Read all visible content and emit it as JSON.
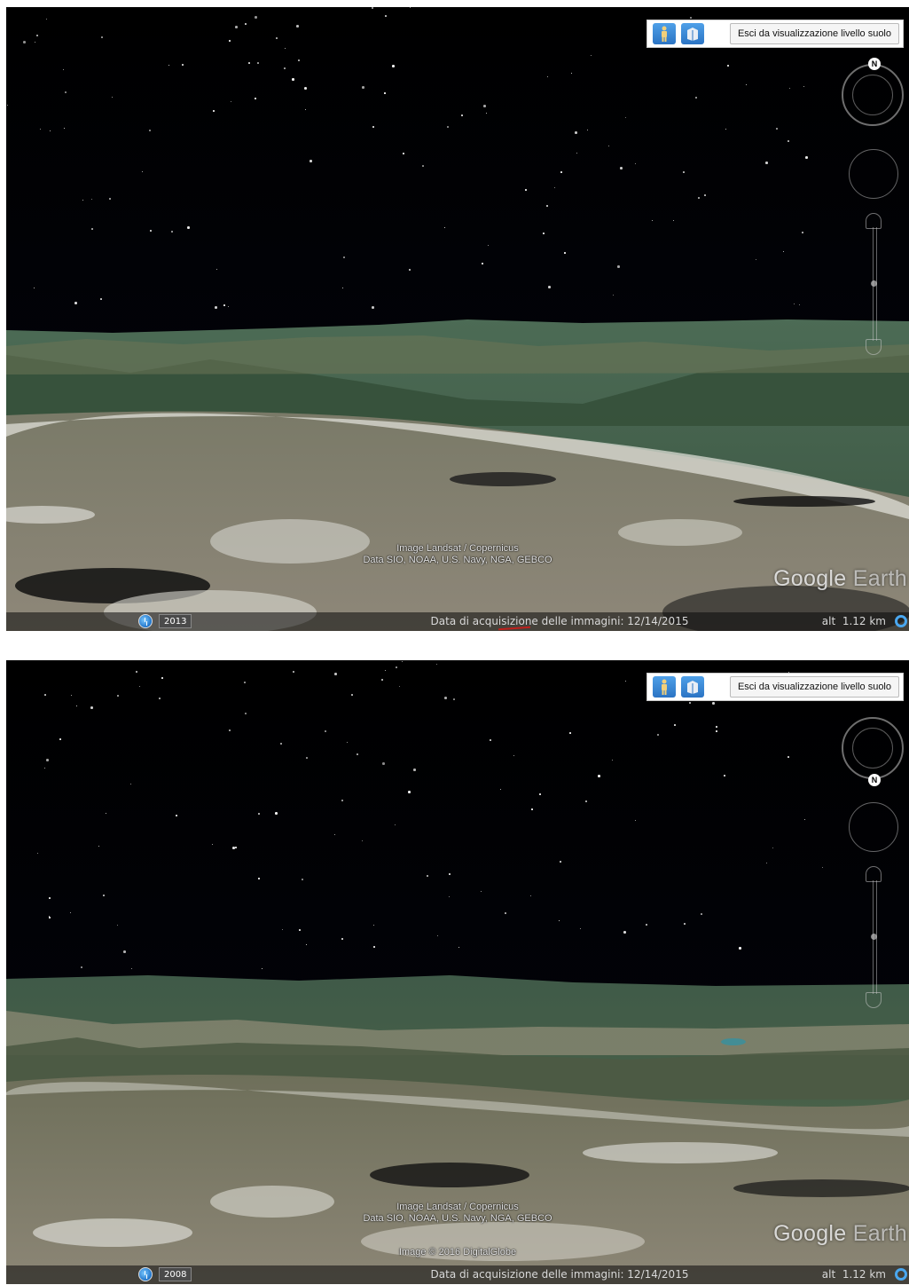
{
  "screens": [
    {
      "controls": {
        "exit_ground_view_label": "Esci da visualizzazione livello suolo",
        "person_icon": "street-view-person-icon",
        "building_icon": "3d-buildings-icon",
        "compass_north_label": "N"
      },
      "attribution": {
        "line1": "Image Landsat / Copernicus",
        "line2": "Data SIO, NOAA, U.S. Navy, NGA, GEBCO",
        "line3": ""
      },
      "logo": {
        "brand": "Google",
        "product": "Earth"
      },
      "status_bar": {
        "historical_year": "2013",
        "acquisition_date": "Data di acquisizione delle immagini: 12/14/2015",
        "altitude": "alt  1.12 km"
      }
    },
    {
      "controls": {
        "exit_ground_view_label": "Esci da visualizzazione livello suolo",
        "person_icon": "street-view-person-icon",
        "building_icon": "3d-buildings-icon",
        "compass_north_label": "N"
      },
      "attribution": {
        "line1": "Image Landsat / Copernicus",
        "line2": "Data SIO, NOAA, U.S. Navy, NGA, GEBCO",
        "line3": "Image © 2016 DigitalGlobe"
      },
      "logo": {
        "brand": "Google",
        "product": "Earth"
      },
      "status_bar": {
        "historical_year": "2008",
        "acquisition_date": "Data di acquisizione delle immagini: 12/14/2015",
        "altitude": "alt  1.12 km"
      }
    }
  ],
  "colors": {
    "sky": "#000000",
    "terrain_far": "#3f5a44",
    "terrain_near": "#8f8a7c",
    "button_blue": "#2b74c4",
    "altitude_indicator": "#4aa7ef"
  }
}
